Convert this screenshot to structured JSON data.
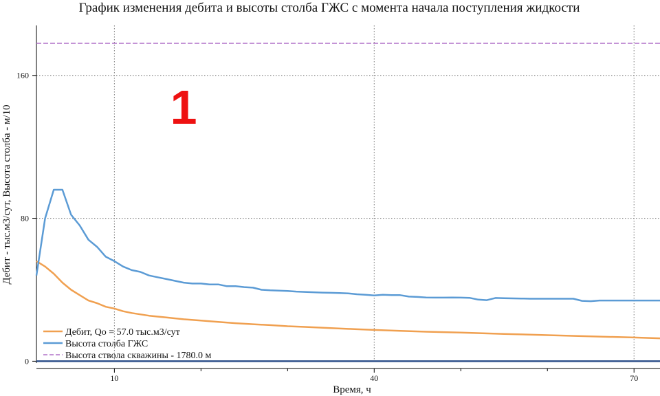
{
  "chart_data": {
    "type": "line",
    "title": "График изменения дебита и высоты столба ГЖС с момента начала поступления жидкости",
    "xlabel": "Время, ч",
    "ylabel": "Дебит - тыс.м3/сут, Высота столба - м/10",
    "xlim": [
      1,
      73
    ],
    "ylim": [
      -1,
      188
    ],
    "xticks": [
      10,
      40,
      70
    ],
    "yticks": [
      0,
      80,
      160
    ],
    "grid": true,
    "annotation": {
      "text": "1",
      "color": "#ee1111",
      "x": 18,
      "y": 143
    },
    "legend": {
      "placement": "bottom-left",
      "entries": [
        "Дебит, Qo =  57.0 тыс.м3/сут",
        "Высота столба ГЖС",
        "Высота ствола скважины - 1780.0 м"
      ]
    },
    "colors": {
      "rate": "#f0a050",
      "column": "#5b9bd5",
      "well": "#b070c8",
      "baseline": "#2d4f8a"
    },
    "series": [
      {
        "name": "Дебит, Qo =  57.0 тыс.м3/сут",
        "color": "#f0a050",
        "style": "solid",
        "x": [
          1,
          2,
          3,
          4,
          5,
          6,
          7,
          8,
          9,
          10,
          11,
          12,
          14,
          16,
          18,
          20,
          22,
          24,
          26,
          28,
          30,
          32,
          35,
          38,
          40,
          43,
          46,
          50,
          55,
          60,
          65,
          70,
          73
        ],
        "y": [
          56,
          53,
          49,
          44,
          40,
          37,
          34,
          32.5,
          30.5,
          29.5,
          28,
          27,
          25.5,
          24.5,
          23.5,
          22.8,
          22,
          21.3,
          20.7,
          20.2,
          19.6,
          19.2,
          18.5,
          17.9,
          17.5,
          17,
          16.5,
          16,
          15.3,
          14.6,
          13.9,
          13.3,
          12.8
        ]
      },
      {
        "name": "Высота столба ГЖС",
        "color": "#5b9bd5",
        "style": "solid",
        "x": [
          1,
          2,
          3,
          4,
          5,
          6,
          7,
          8,
          9,
          10,
          11,
          12,
          13,
          14,
          15,
          16,
          17,
          18,
          19,
          20,
          21,
          22,
          23,
          24,
          25,
          26,
          27,
          28,
          29,
          30,
          31,
          32,
          33,
          34,
          35,
          36,
          37,
          38,
          39,
          40,
          41,
          42,
          43,
          44,
          45,
          46,
          47,
          48,
          49,
          50,
          51,
          52,
          53,
          54,
          55,
          56,
          57,
          58,
          59,
          60,
          61,
          62,
          63,
          64,
          65,
          66,
          67,
          68,
          69,
          70,
          71,
          72,
          73
        ],
        "y": [
          48,
          80,
          96,
          96,
          82,
          76,
          68,
          64,
          58.5,
          56,
          53,
          51,
          50,
          48,
          47,
          46,
          45,
          44,
          43.5,
          43.5,
          43,
          43,
          42,
          42,
          41.5,
          41.2,
          40,
          39.7,
          39.5,
          39.3,
          39,
          38.8,
          38.6,
          38.4,
          38.3,
          38.2,
          38,
          37.5,
          37.2,
          36.8,
          37.2,
          37,
          37,
          36.2,
          36,
          35.7,
          35.6,
          35.6,
          35.7,
          35.6,
          35.5,
          34.5,
          34.2,
          35.4,
          35.3,
          35.2,
          35.1,
          35,
          35,
          35,
          35,
          35,
          35,
          33.8,
          33.6,
          34,
          34,
          34,
          34,
          34,
          34,
          34,
          34
        ]
      },
      {
        "name": "Высота ствола скважины - 1780.0 м",
        "color": "#b070c8",
        "style": "dashed",
        "x": [
          1,
          73
        ],
        "y": [
          178,
          178
        ]
      },
      {
        "color": "#2d4f8a",
        "style": "solid",
        "x": [
          1,
          73
        ],
        "y": [
          0,
          0
        ]
      }
    ]
  }
}
